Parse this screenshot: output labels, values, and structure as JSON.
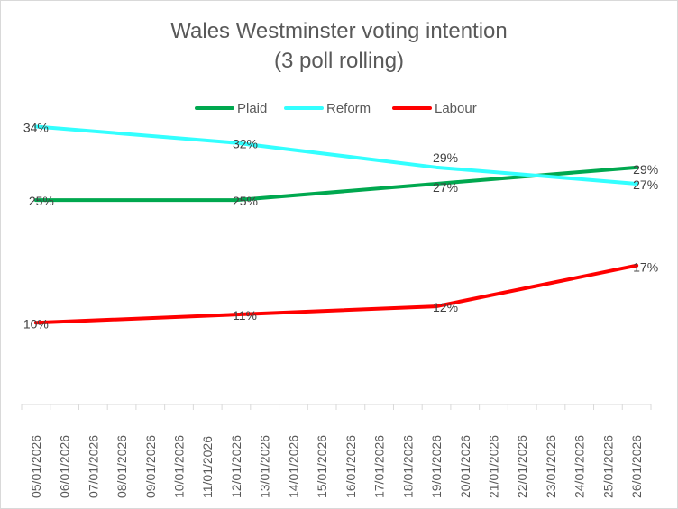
{
  "chart_data": {
    "type": "line",
    "title": "Wales Westminster voting intention",
    "subtitle": "(3 poll rolling)",
    "x": [
      "05/01/2026",
      "06/01/2026",
      "07/01/2026",
      "08/01/2026",
      "09/01/2026",
      "10/01/2026",
      "11/01/2026",
      "12/01/2026",
      "13/01/2026",
      "14/01/2026",
      "15/01/2026",
      "16/01/2026",
      "17/01/2026",
      "18/01/2026",
      "19/01/2026",
      "20/01/2026",
      "21/01/2026",
      "22/01/2026",
      "23/01/2026",
      "24/01/2026",
      "25/01/2026",
      "26/01/2026"
    ],
    "series": [
      {
        "name": "Plaid",
        "color": "#00a84f",
        "points": [
          {
            "x": "05/01/2026",
            "y": 25
          },
          {
            "x": "12/01/2026",
            "y": 25
          },
          {
            "x": "19/01/2026",
            "y": 27
          },
          {
            "x": "26/01/2026",
            "y": 29
          }
        ],
        "labels": [
          "25%",
          "25%",
          "27%",
          "29%"
        ]
      },
      {
        "name": "Reform",
        "color": "#33ffff",
        "points": [
          {
            "x": "05/01/2026",
            "y": 34
          },
          {
            "x": "12/01/2026",
            "y": 32
          },
          {
            "x": "19/01/2026",
            "y": 29
          },
          {
            "x": "26/01/2026",
            "y": 27
          }
        ],
        "labels": [
          "34%",
          "32%",
          "29%",
          "27%"
        ]
      },
      {
        "name": "Labour",
        "color": "#ff0000",
        "points": [
          {
            "x": "05/01/2026",
            "y": 10
          },
          {
            "x": "12/01/2026",
            "y": 11
          },
          {
            "x": "19/01/2026",
            "y": 12
          },
          {
            "x": "26/01/2026",
            "y": 17
          }
        ],
        "labels": [
          "10%",
          "11%",
          "12%",
          "17%"
        ]
      }
    ],
    "ylim": [
      0,
      40
    ],
    "grid": false,
    "legend": "top"
  }
}
